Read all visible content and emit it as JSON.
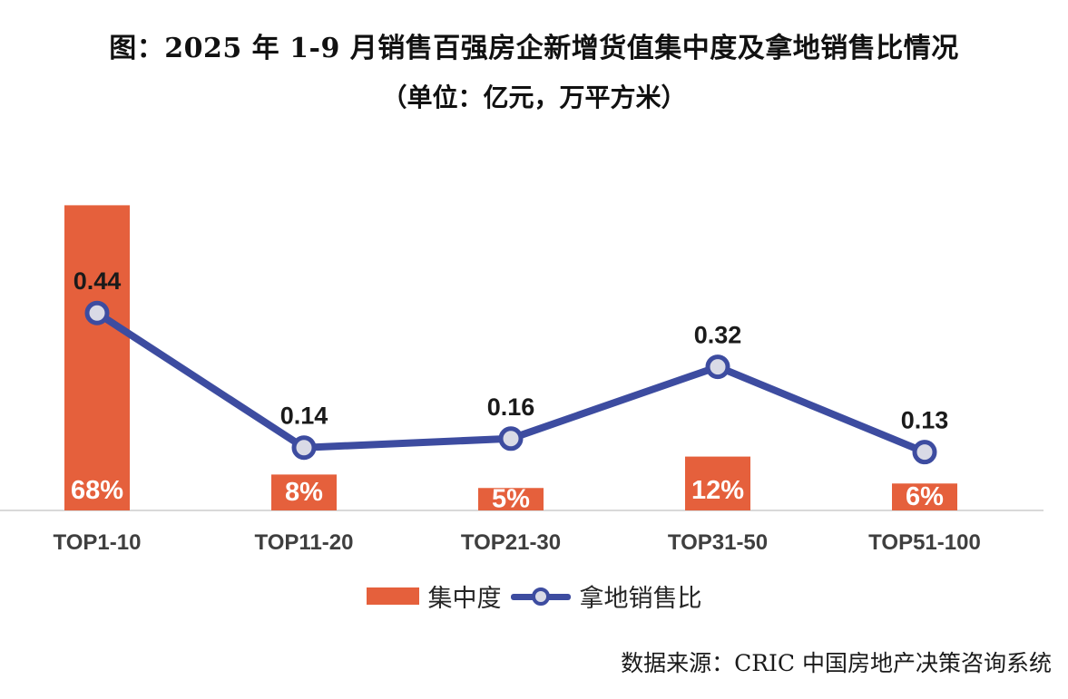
{
  "chart_data": {
    "type": "combo",
    "title": "图：2025 年 1-9 月销售百强房企新增货值集中度及拿地销售比情况",
    "subtitle": "（单位：亿元，万平方米）",
    "source": "数据来源：CRIC 中国房地产决策咨询系统",
    "categories": [
      "TOP1-10",
      "TOP11-20",
      "TOP21-30",
      "TOP31-50",
      "TOP51-100"
    ],
    "series": [
      {
        "name": "集中度",
        "type": "bar",
        "values": [
          68,
          8,
          5,
          12,
          6
        ],
        "labels": [
          "68%",
          "8%",
          "5%",
          "12%",
          "6%"
        ],
        "color": "#E5603C",
        "label_color": "#FFFFFF"
      },
      {
        "name": "拿地销售比",
        "type": "line",
        "values": [
          0.44,
          0.14,
          0.16,
          0.32,
          0.13
        ],
        "labels": [
          "0.44",
          "0.14",
          "0.16",
          "0.32",
          "0.13"
        ],
        "color": "#3D4CA0",
        "marker_fill": "#D9DAE6",
        "label_color": "#1A1A1A"
      }
    ],
    "axis": {
      "baseline_color": "#D9D9D9",
      "tick_label_color": "#3F3F3F"
    },
    "legend_position": "bottom",
    "ylim_bar_pct": [
      0,
      100
    ],
    "ylim_line": [
      0,
      1
    ],
    "grid": "off"
  }
}
